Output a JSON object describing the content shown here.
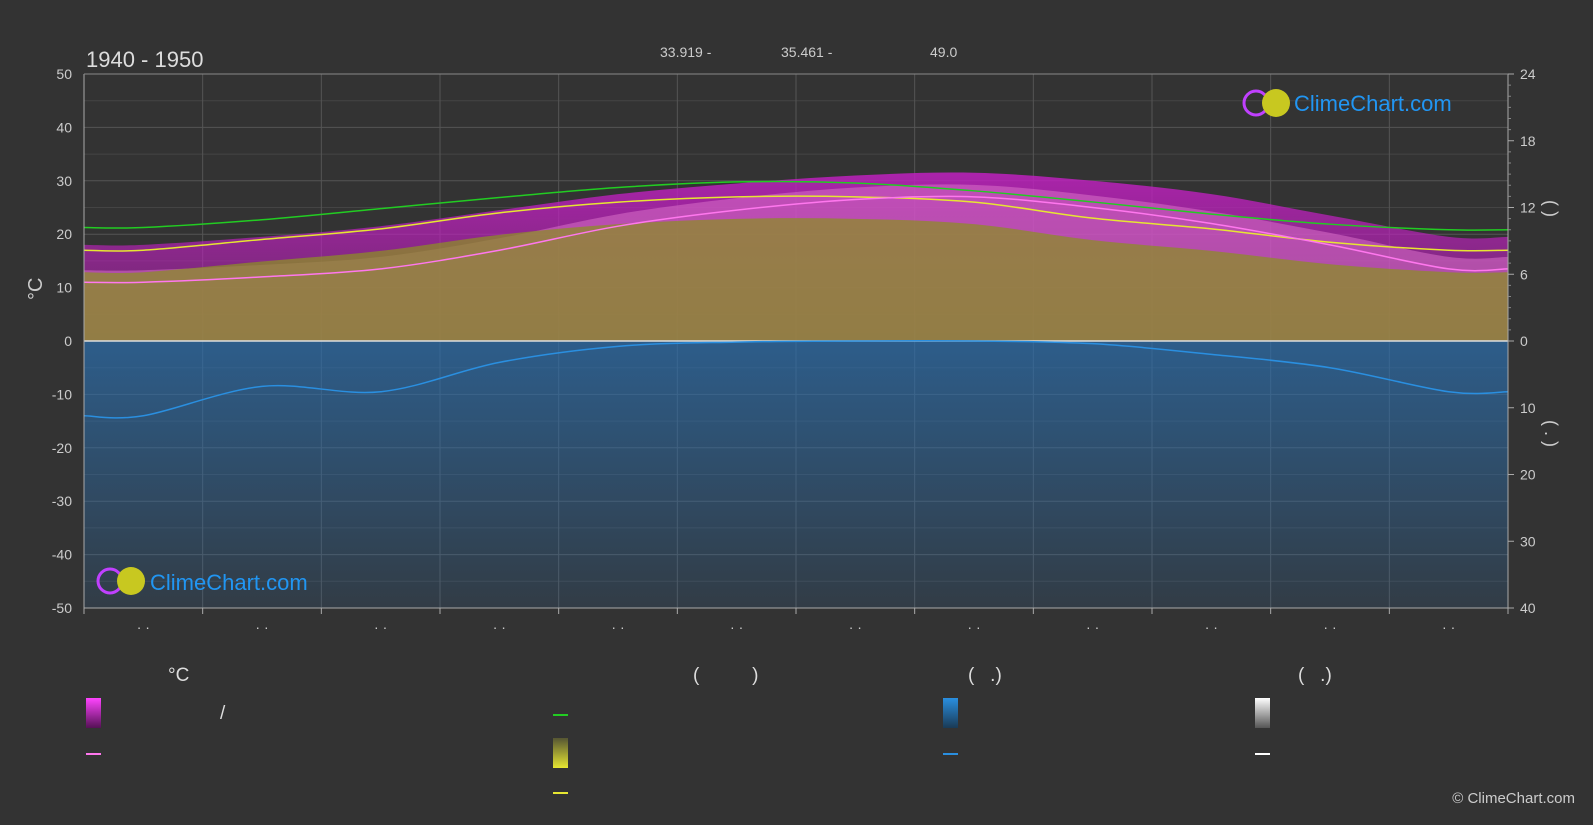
{
  "header": {
    "title": "1940 - 1950",
    "coord_lat": "33.919 -",
    "coord_lon": "35.461 -",
    "elevation": "49.0"
  },
  "logo": {
    "text": "ClimeChart.com"
  },
  "copyright": "© ClimeChart.com",
  "legend": {
    "temp_heading": "°C",
    "sunshine_heading": "(          )",
    "precip_heading": "(   .)",
    "snow_heading": "(   .)",
    "range_label": "/"
  },
  "colors": {
    "background": "#333333",
    "daylight": "#22cc22",
    "sunshine": "#e6e632",
    "max_temp": "#ff44ff",
    "mean_temp": "#ff77ee",
    "precip": "#2a8fe0",
    "snow": "#ffffff",
    "logo": "#2196f3"
  },
  "chart_data": {
    "type": "area",
    "xlabel": "",
    "ylabel": "°C",
    "y2label_top": "(   )",
    "y2label_bottom": "( . )",
    "ylim": [
      -50,
      50
    ],
    "yticks": [
      50,
      40,
      30,
      20,
      10,
      0,
      -10,
      -20,
      -30,
      -40,
      -50
    ],
    "y2_upper_ticks": [
      24,
      18,
      12,
      6,
      0
    ],
    "y2_lower_ticks": [
      10,
      20,
      30,
      40
    ],
    "x_tick_labels": [
      "· ·",
      "· ·",
      "· ·",
      "· ·",
      "· ·",
      "· ·",
      "· ·",
      "· ·",
      "· ·",
      "· ·",
      "· ·",
      "· ·"
    ],
    "months_x": [
      0.5,
      1.5,
      2.5,
      3.5,
      4.5,
      5.5,
      6.5,
      7.5,
      8.5,
      9.5,
      10.5,
      11.5
    ],
    "series": [
      {
        "key": "daylight",
        "values": [
          10.2,
          10.9,
          11.9,
          12.9,
          13.8,
          14.3,
          14.2,
          13.5,
          12.5,
          11.4,
          10.5,
          10.0
        ]
      },
      {
        "key": "sunshine",
        "values": [
          17.0,
          19.0,
          21.0,
          24.0,
          26.0,
          27.0,
          27.0,
          26.0,
          23.0,
          21.0,
          18.5,
          17.0
        ]
      },
      {
        "key": "mean_temp",
        "values": [
          11.0,
          12.0,
          13.5,
          17.0,
          21.5,
          24.5,
          26.5,
          27.0,
          25.0,
          22.0,
          18.0,
          13.5
        ]
      },
      {
        "key": "max_temp",
        "values": [
          18.0,
          19.5,
          21.5,
          24.5,
          27.5,
          29.5,
          31.0,
          31.5,
          30.0,
          27.5,
          23.5,
          19.5
        ]
      },
      {
        "key": "precip",
        "values": [
          -14.0,
          -8.5,
          -9.5,
          -4.0,
          -1.0,
          -0.2,
          0.0,
          0.0,
          -0.5,
          -2.5,
          -5.0,
          -9.5
        ]
      }
    ]
  }
}
